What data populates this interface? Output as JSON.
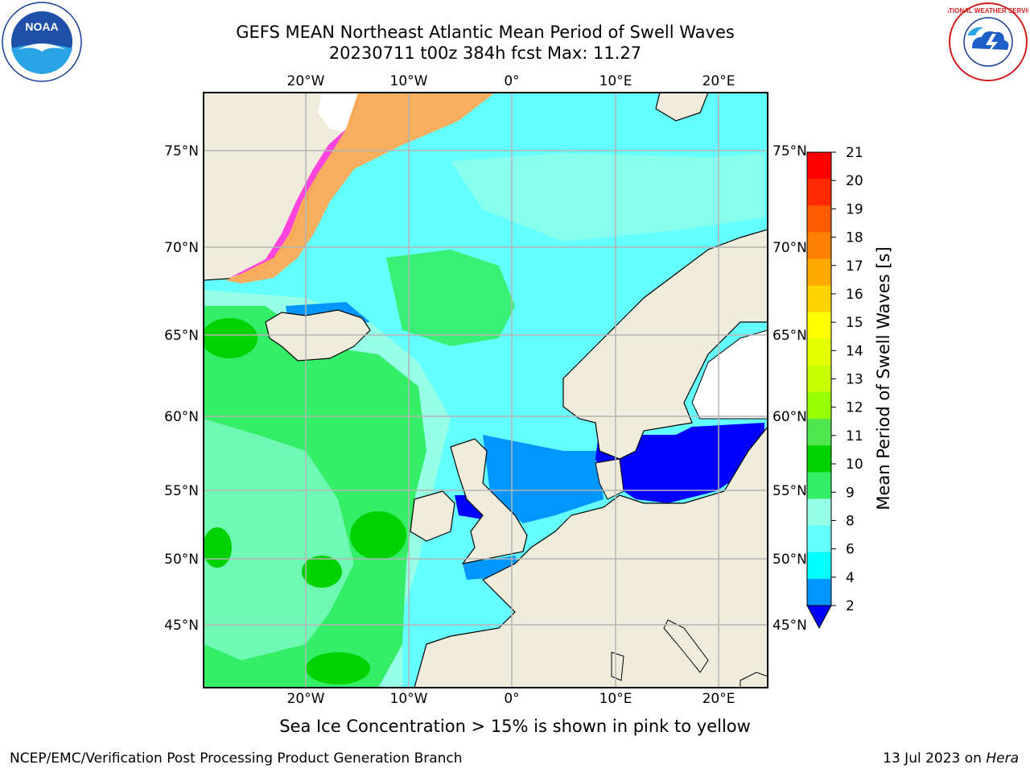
{
  "header": {
    "title_line1": "GEFS MEAN Northeast Atlantic Mean Period of Swell Waves",
    "title_line2": "20230711 t00z 384h fcst   Max: 11.27"
  },
  "logos": {
    "left": "NOAA",
    "left_ring_text": "NATIONAL OCEANIC AND ATMOSPHERIC ADMINISTRATION · U.S. DEPARTMENT OF COMMERCE",
    "right_ring_text": "NATIONAL WEATHER SERVICE"
  },
  "map": {
    "lon_labels": [
      "20°W",
      "10°W",
      "0°",
      "10°E",
      "20°E"
    ],
    "lat_labels": [
      "75°N",
      "70°N",
      "65°N",
      "60°N",
      "55°N",
      "50°N",
      "45°N"
    ],
    "colors": {
      "land": "#efecdc",
      "ice_free_land": "#ffffff",
      "grid": "#b4b4b4"
    }
  },
  "colorbar": {
    "title": "Mean Period of Swell Waves [s]",
    "ticks": [
      "21",
      "20",
      "19",
      "18",
      "17",
      "16",
      "15",
      "14",
      "13",
      "12",
      "11",
      "10",
      "9",
      "8",
      "6",
      "4",
      "2"
    ],
    "colors": [
      "#ff0000",
      "#ff2a00",
      "#ff5a00",
      "#ff8000",
      "#ffaa00",
      "#ffd200",
      "#ffff00",
      "#e6ff00",
      "#c8ff00",
      "#96ff00",
      "#50e650",
      "#00d200",
      "#33ee66",
      "#96ffe6",
      "#64ffff",
      "#00ffff",
      "#0096ff",
      "#0000ff"
    ]
  },
  "note": "Sea Ice Concentration > 15% is shown in pink to yellow",
  "footer": {
    "left": "NCEP/EMC/Verification Post Processing Product Generation Branch",
    "right_date": "13 Jul 2023 on",
    "right_machine": "Hera"
  }
}
